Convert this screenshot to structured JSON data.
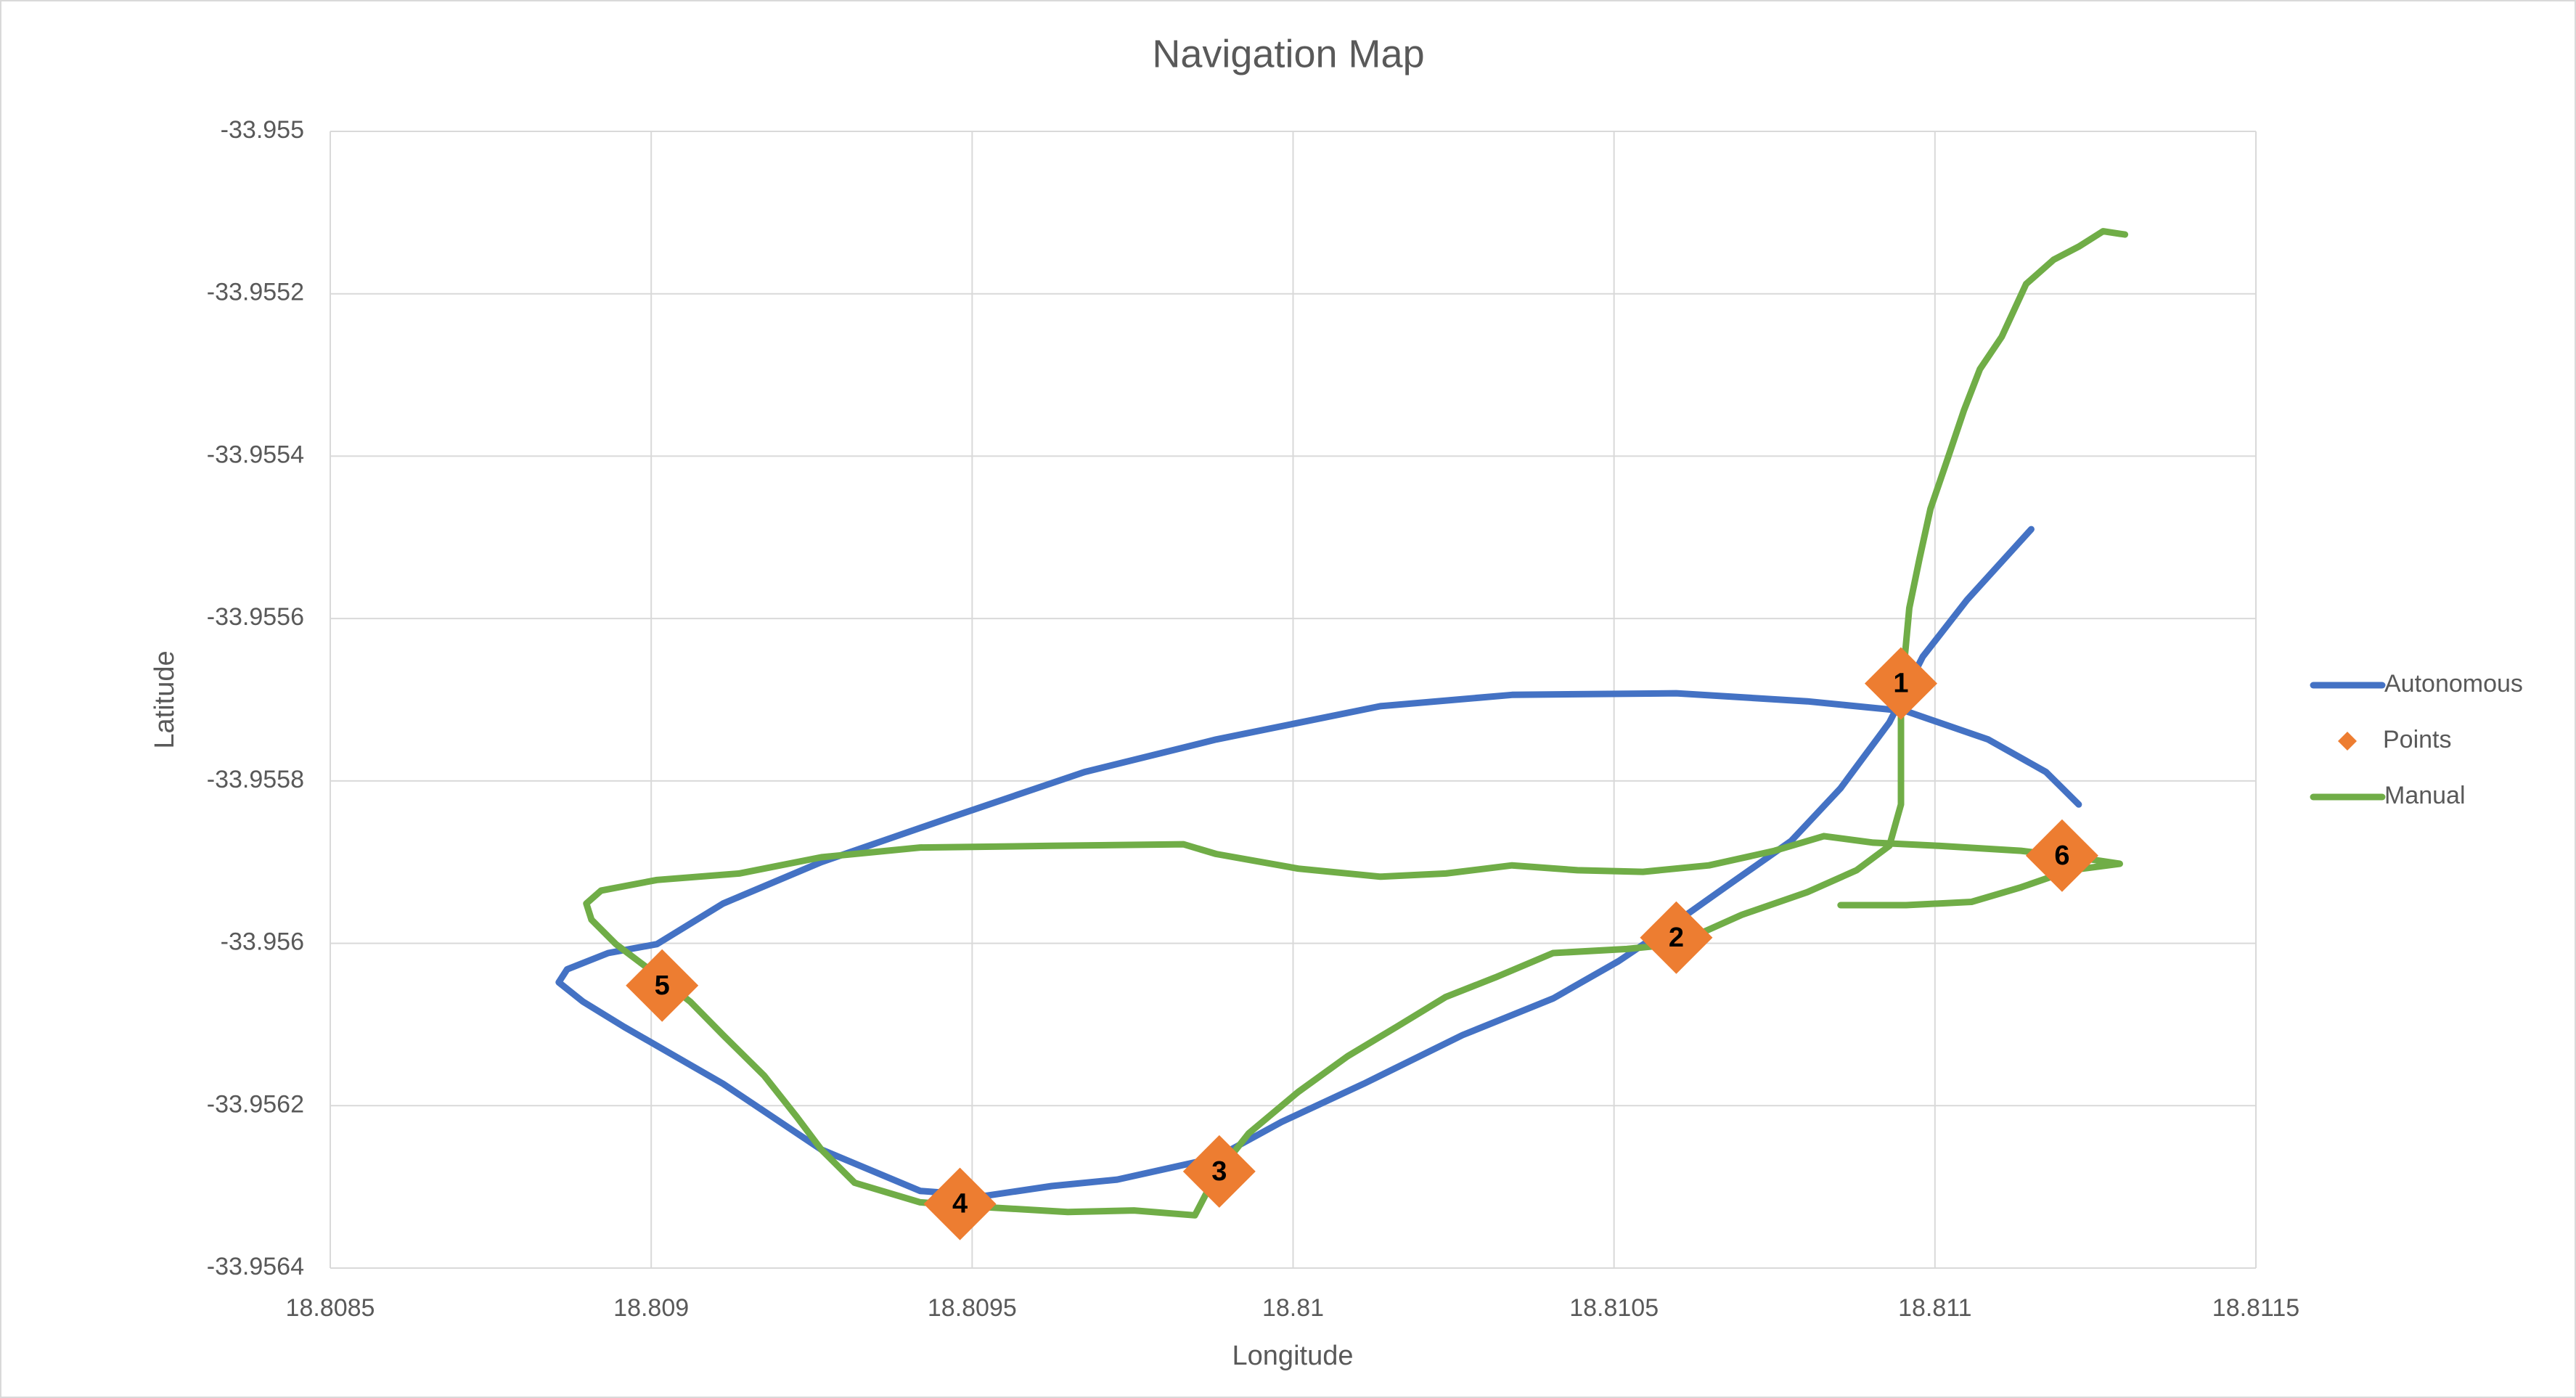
{
  "chart_data": {
    "type": "scatter",
    "title": "Navigation Map",
    "x_label": "Longitude",
    "y_label": "Latitude",
    "xlim": [
      18.8085,
      18.8115
    ],
    "xticks": [
      18.8085,
      18.809,
      18.8095,
      18.81,
      18.8105,
      18.811,
      18.8115
    ],
    "ylim": [
      -33.9564,
      -33.955
    ],
    "yticks": [
      -33.9564,
      -33.9562,
      -33.956,
      -33.9558,
      -33.9556,
      -33.9554,
      -33.9552,
      -33.955
    ],
    "grid": true,
    "legend": "right",
    "series": [
      {
        "name": "Autonomous",
        "color": "#4472c4",
        "mode": "line",
        "x": [
          18.81115,
          18.81105,
          18.810981,
          18.810929,
          18.810853,
          18.810776,
          18.810673,
          18.810584,
          18.810507,
          18.810405,
          18.810264,
          18.81011,
          18.809982,
          18.80988,
          18.809726,
          18.809624,
          18.809521,
          18.809419,
          18.809265,
          18.809112,
          18.808958,
          18.808894,
          18.808856,
          18.808869,
          18.808933,
          18.809009,
          18.809112,
          18.809265,
          18.80947,
          18.809675,
          18.80988,
          18.810136,
          18.810341,
          18.810597,
          18.810801,
          18.810955,
          18.811083,
          18.811173,
          18.811224
        ],
        "values": [
          -33.95549,
          -33.955577,
          -33.955647,
          -33.955728,
          -33.955809,
          -33.955874,
          -33.955931,
          -33.955981,
          -33.956022,
          -33.956068,
          -33.956113,
          -33.956173,
          -33.95622,
          -33.956264,
          -33.956291,
          -33.956299,
          -33.956311,
          -33.956305,
          -33.956254,
          -33.956173,
          -33.956103,
          -33.956072,
          -33.956048,
          -33.956032,
          -33.956012,
          -33.956001,
          -33.955951,
          -33.9559,
          -33.955844,
          -33.955789,
          -33.955749,
          -33.955708,
          -33.955694,
          -33.955692,
          -33.955702,
          -33.955714,
          -33.955749,
          -33.955789,
          -33.955829
        ]
      },
      {
        "name": "Points",
        "color": "#ed7d31",
        "mode": "marker",
        "x": [
          18.810947,
          18.810597,
          18.809885,
          18.809481,
          18.809017,
          18.811198
        ],
        "values": [
          -33.95568,
          -33.955993,
          -33.956281,
          -33.956321,
          -33.956052,
          -33.955892
        ],
        "labels": [
          "1",
          "2",
          "3",
          "4",
          "5",
          "6"
        ]
      },
      {
        "name": "Manual",
        "color": "#70ad47",
        "mode": "line",
        "x": [
          18.811296,
          18.811262,
          18.811224,
          18.811185,
          18.811142,
          18.811104,
          18.81107,
          18.811045,
          18.811019,
          18.810993,
          18.810976,
          18.81096,
          18.810953,
          18.810947,
          18.810947,
          18.810947,
          18.810929,
          18.810878,
          18.810801,
          18.810699,
          18.810597,
          18.81052,
          18.810405,
          18.810315,
          18.810238,
          18.810161,
          18.810085,
          18.810008,
          18.809931,
          18.80988,
          18.809847,
          18.809752,
          18.809649,
          18.809521,
          18.809419,
          18.809317,
          18.809265,
          18.809227,
          18.809176,
          18.809112,
          18.809061,
          18.808997,
          18.808945,
          18.808907,
          18.808899,
          18.808922,
          18.809009,
          18.809137,
          18.809265,
          18.809419,
          18.809624,
          18.809829,
          18.80988,
          18.810008,
          18.810136,
          18.810238,
          18.810341,
          18.810443,
          18.810545,
          18.810648,
          18.81075,
          18.810827,
          18.810904,
          18.811006,
          18.811134,
          18.811237,
          18.811288,
          18.811211,
          18.811134,
          18.811057,
          18.810955,
          18.810853
        ],
        "values": [
          -33.955127,
          -33.955123,
          -33.955142,
          -33.955158,
          -33.955188,
          -33.955253,
          -33.955293,
          -33.955344,
          -33.955405,
          -33.955465,
          -33.955526,
          -33.955587,
          -33.955647,
          -33.955708,
          -33.955769,
          -33.955829,
          -33.95588,
          -33.95591,
          -33.955937,
          -33.955965,
          -33.956001,
          -33.956007,
          -33.956012,
          -33.956042,
          -33.956066,
          -33.956103,
          -33.956139,
          -33.956183,
          -33.956234,
          -33.956285,
          -33.956335,
          -33.956329,
          -33.956331,
          -33.956325,
          -33.956319,
          -33.956295,
          -33.956254,
          -33.956214,
          -33.956163,
          -33.956113,
          -33.956072,
          -33.956032,
          -33.956001,
          -33.955971,
          -33.955951,
          -33.955935,
          -33.955922,
          -33.955914,
          -33.955894,
          -33.955882,
          -33.95588,
          -33.955878,
          -33.95589,
          -33.955908,
          -33.955918,
          -33.955914,
          -33.955904,
          -33.95591,
          -33.955912,
          -33.955904,
          -33.955886,
          -33.955868,
          -33.955876,
          -33.95588,
          -33.955886,
          -33.955896,
          -33.955902,
          -33.95591,
          -33.955931,
          -33.955949,
          -33.955953,
          -33.955953
        ]
      }
    ]
  }
}
